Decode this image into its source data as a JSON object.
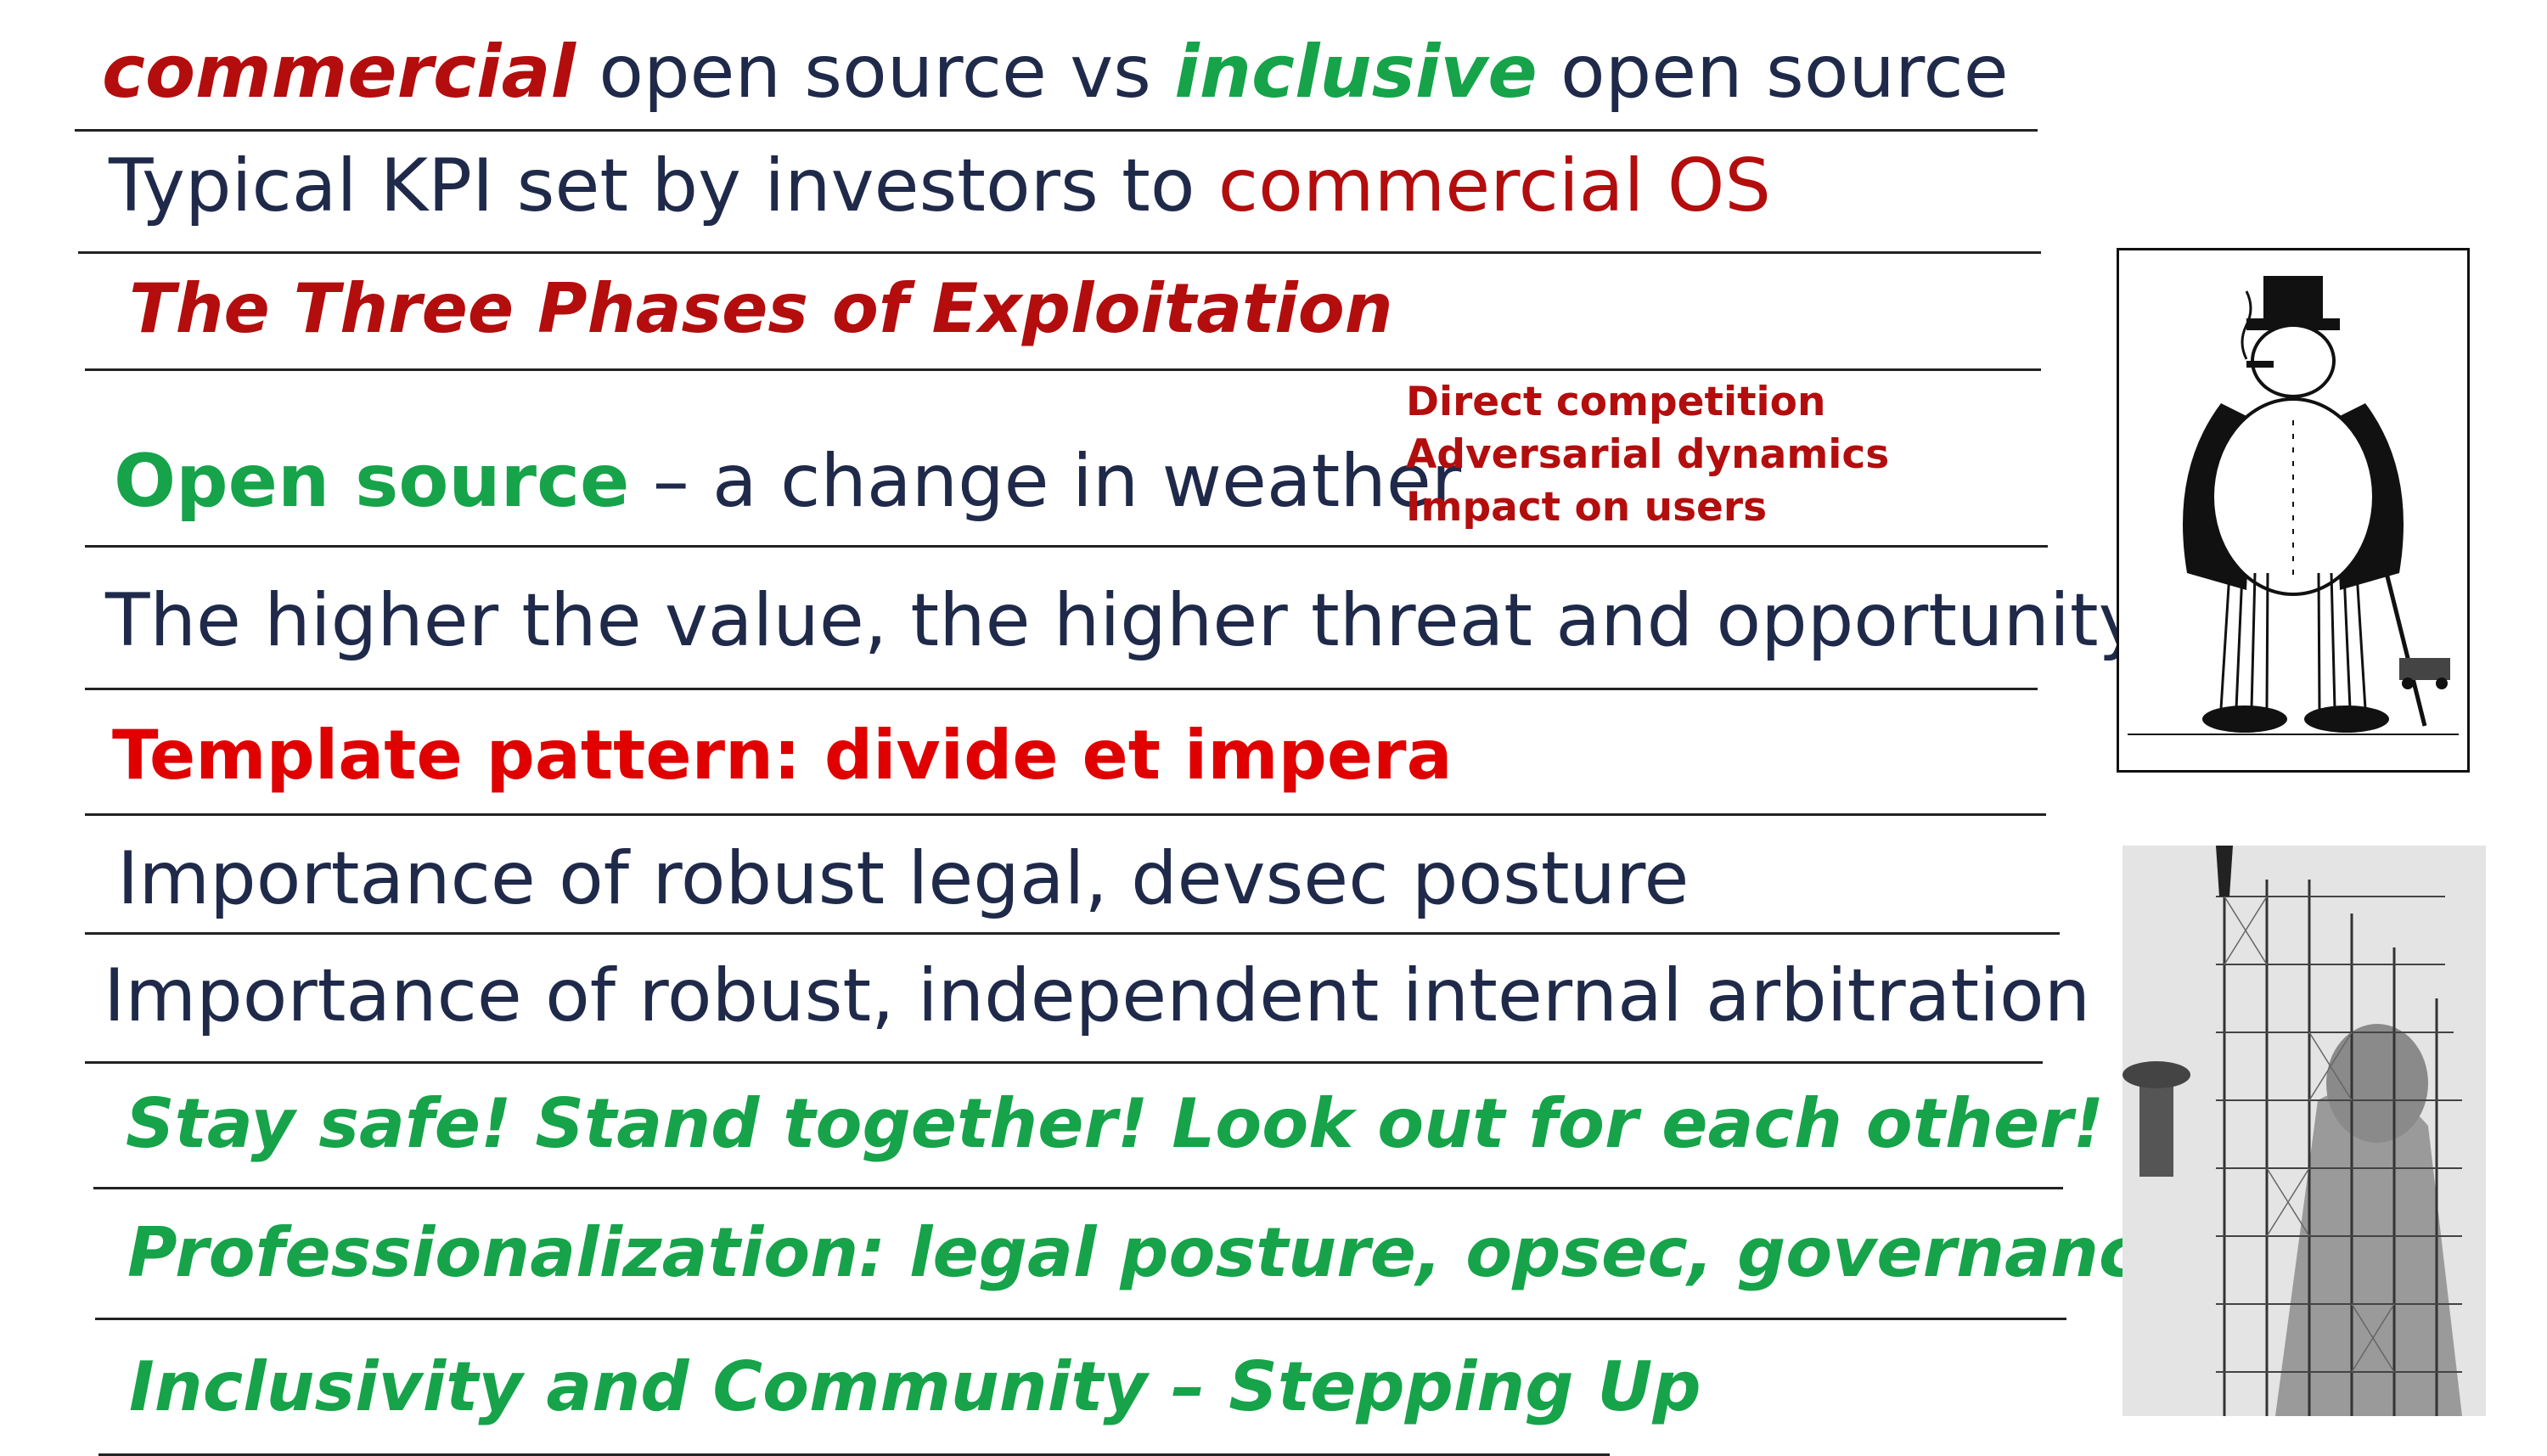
{
  "lines": [
    {
      "parts": [
        {
          "text": "commercial",
          "style": "darkred-bi"
        },
        {
          "text": " open source vs ",
          "style": "navy"
        },
        {
          "text": "inclusive",
          "style": "green-bi"
        },
        {
          "text": " open source",
          "style": "navy"
        }
      ]
    },
    {
      "parts": [
        {
          "text": "Typical KPI set by investors to ",
          "style": "navy"
        },
        {
          "text": "commercial OS",
          "style": "darkred"
        }
      ]
    },
    {
      "parts": [
        {
          "text": "The Three Phases of Exploitation",
          "style": "darkred-bi"
        }
      ]
    },
    {
      "parts": [
        {
          "text": "Open source",
          "style": "green-b"
        },
        {
          "text": " – a change in weather",
          "style": "navy"
        }
      ]
    },
    {
      "parts": [
        {
          "text": "The higher the value, the higher threat and opportunity",
          "style": "navy"
        }
      ]
    },
    {
      "parts": [
        {
          "text": "Template pattern: divide et impera",
          "style": "red-b"
        }
      ]
    },
    {
      "parts": [
        {
          "text": "Importance of robust legal, devsec posture",
          "style": "navy"
        }
      ]
    },
    {
      "parts": [
        {
          "text": "Importance of robust, independent internal arbitration",
          "style": "navy"
        }
      ]
    },
    {
      "parts": [
        {
          "text": "Stay safe! Stand together! Look out for each other!",
          "style": "green-bi"
        }
      ]
    },
    {
      "parts": [
        {
          "text": "Professionalization: legal posture, opsec, governance",
          "style": "green-bi"
        }
      ]
    },
    {
      "parts": [
        {
          "text": "Inclusivity and Community – Stepping Up",
          "style": "green-bi"
        }
      ]
    }
  ],
  "side_list": [
    "Direct competition",
    "Adversarial dynamics",
    "Impact on users"
  ],
  "images": {
    "cartoon": "tycoon-cartoon-illustration",
    "photo": "statue-scaffolding-photo"
  },
  "colors": {
    "navy": "#1f2a4a",
    "darkred": "#b30d0d",
    "red": "#e00000",
    "green": "#16a34a"
  }
}
